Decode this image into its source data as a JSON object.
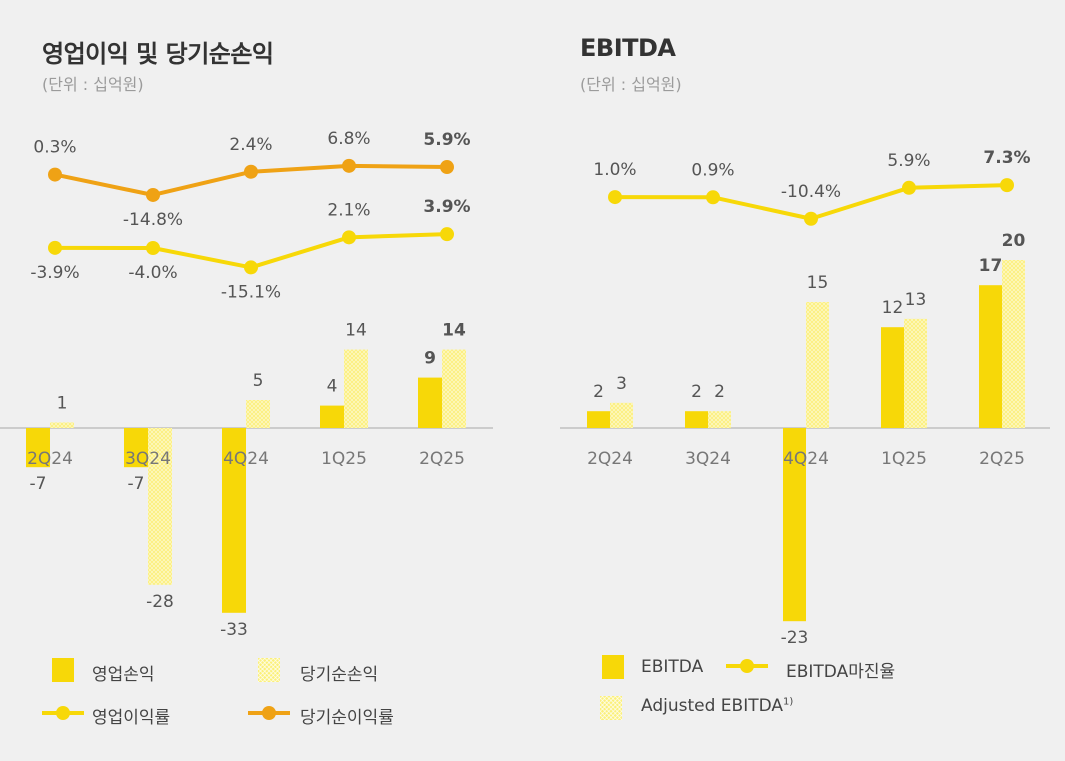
{
  "colors": {
    "solid": "#f7d808",
    "hatch": "#fbef78",
    "line_yellow": "#f7d808",
    "line_orange": "#efa215",
    "axis": "#cccccc"
  },
  "left": {
    "title": "영업이익 및 당기순손익",
    "unit": "(단위 : 십억원)",
    "legend": {
      "operating": "영업손익",
      "net": "당기순손익",
      "op_margin": "영업이익률",
      "net_margin": "당기순이익률"
    }
  },
  "right": {
    "title": "EBITDA",
    "unit": "(단위 : 십억원)",
    "legend": {
      "ebitda": "EBITDA",
      "margin": "EBITDA마진율",
      "adjusted": "Adjusted EBITDA",
      "adjusted_sup": "1)"
    }
  },
  "chart_data": [
    {
      "type": "bar",
      "title": "영업이익 및 당기순손익",
      "unit": "(단위 : 십억원)",
      "categories": [
        "2Q24",
        "3Q24",
        "4Q24",
        "1Q25",
        "2Q25"
      ],
      "series": [
        {
          "name": "영업손익",
          "style": "solid",
          "values": [
            -7,
            -7,
            -33,
            4,
            9
          ],
          "labels": [
            "-7",
            "-7",
            "-33",
            "4",
            "9"
          ]
        },
        {
          "name": "당기순손익",
          "style": "hatch",
          "values": [
            1,
            -28,
            5,
            14,
            14
          ],
          "labels": [
            "1",
            "-28",
            "5",
            "14",
            "14"
          ]
        }
      ],
      "lines": [
        {
          "name": "영업이익률",
          "color": "yellow",
          "values": [
            -3.9,
            -4.0,
            -15.1,
            2.1,
            3.9
          ],
          "labels": [
            "-3.9%",
            "-4.0%",
            "-15.1%",
            "2.1%",
            "3.9%"
          ]
        },
        {
          "name": "당기순이익률",
          "color": "orange",
          "values": [
            0.3,
            -14.8,
            2.4,
            6.8,
            5.9
          ],
          "labels": [
            "0.3%",
            "-14.8%",
            "2.4%",
            "6.8%",
            "5.9%"
          ]
        }
      ],
      "bold_last": true
    },
    {
      "type": "bar",
      "title": "EBITDA",
      "unit": "(단위 : 십억원)",
      "categories": [
        "2Q24",
        "3Q24",
        "4Q24",
        "1Q25",
        "2Q25"
      ],
      "series": [
        {
          "name": "EBITDA",
          "style": "solid",
          "values": [
            2,
            2,
            -23,
            12,
            17
          ],
          "labels": [
            "2",
            "2",
            "-23",
            "12",
            "17"
          ]
        },
        {
          "name": "Adjusted EBITDA",
          "style": "hatch",
          "values": [
            3,
            2,
            15,
            13,
            20
          ],
          "labels": [
            "3",
            "2",
            "15",
            "13",
            "20"
          ]
        }
      ],
      "lines": [
        {
          "name": "EBITDA마진율",
          "color": "yellow",
          "values": [
            1.0,
            0.9,
            -10.4,
            5.9,
            7.3
          ],
          "labels": [
            "1.0%",
            "0.9%",
            "-10.4%",
            "5.9%",
            "7.3%"
          ]
        }
      ],
      "bold_last": true
    }
  ]
}
